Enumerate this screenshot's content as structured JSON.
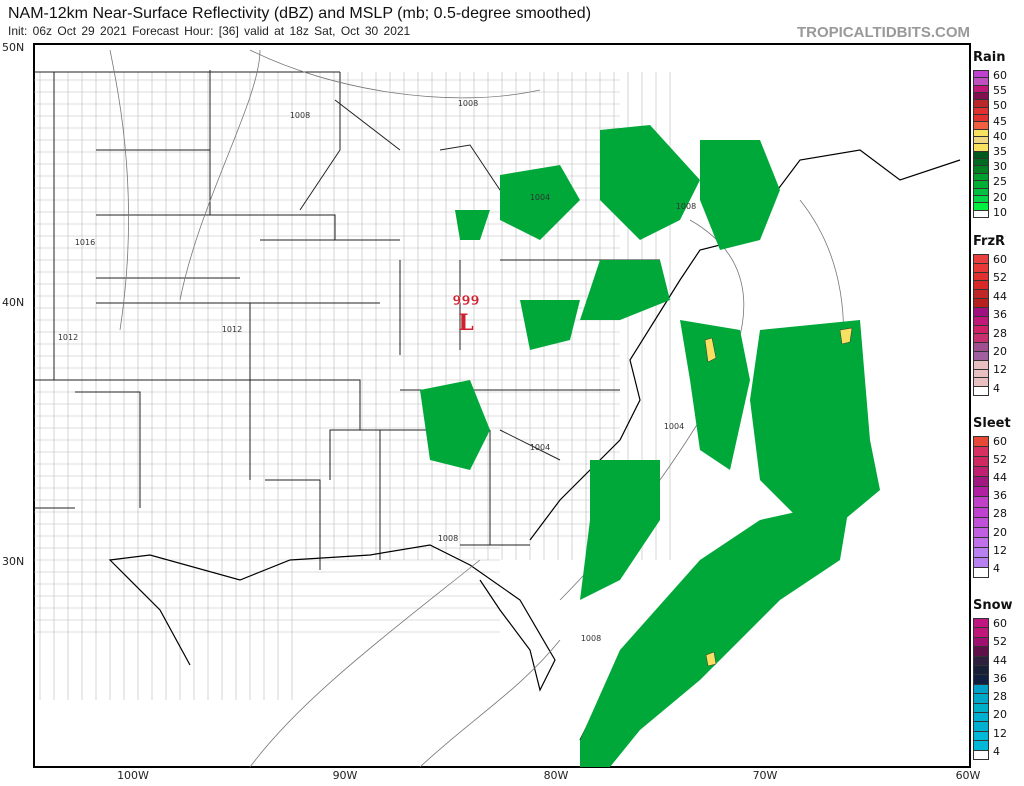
{
  "header": {
    "title": "NAM-12km Near-Surface Reflectivity (dBZ) and MSLP (mb; 0.5-degree smoothed)",
    "subtitle": "Init: 06z Oct 29 2021   Forecast Hour: [36]   valid at 18z Sat, Oct 30 2021",
    "brand": "TROPICALTIDBITS.COM"
  },
  "map": {
    "lat_labels": [
      "50N",
      "40N",
      "30N"
    ],
    "lon_labels": [
      "100W",
      "90W",
      "80W",
      "70W",
      "60W"
    ],
    "low_center": {
      "pressure": "999",
      "symbol": "L",
      "color": "#d02030"
    },
    "isobar_labels": [
      "1008",
      "1008",
      "1004",
      "1008",
      "1016",
      "1012",
      "1012",
      "1004",
      "1004",
      "1008",
      "1008"
    ],
    "precip_color": "#00a83a"
  },
  "legends": [
    {
      "title": "Rain",
      "labels": [
        "60",
        "55",
        "50",
        "45",
        "40",
        "35",
        "30",
        "25",
        "20",
        "10"
      ],
      "colors": [
        "#c040d0",
        "#c050c0",
        "#c01878",
        "#801050",
        "#b82828",
        "#e03030",
        "#e03030",
        "#f06040",
        "#f8e060",
        "#f0d880",
        "#f8e060",
        "#005a1e",
        "#006a20",
        "#008020",
        "#00a030",
        "#00b034",
        "#00c040",
        "#00d848",
        "#00f040",
        "#ffffff"
      ]
    },
    {
      "title": "FrzR",
      "labels": [
        "60",
        "52",
        "44",
        "36",
        "28",
        "20",
        "12",
        "4"
      ],
      "colors": [
        "#e84040",
        "#e83838",
        "#e03030",
        "#d82828",
        "#c02828",
        "#b82020",
        "#a01080",
        "#c01878",
        "#d02068",
        "#c83070",
        "#a05090",
        "#a060a0",
        "#e8c0c0",
        "#e8c0c0",
        "#e8c0c0",
        "#ffffff"
      ]
    },
    {
      "title": "Sleet",
      "labels": [
        "60",
        "52",
        "44",
        "36",
        "28",
        "20",
        "12",
        "4"
      ],
      "colors": [
        "#e84838",
        "#d83060",
        "#d02860",
        "#c02070",
        "#a01880",
        "#b020a0",
        "#c040c8",
        "#c040d0",
        "#c050d8",
        "#c060e0",
        "#c070e8",
        "#b880f0",
        "#b880f0",
        "#ffffff"
      ]
    },
    {
      "title": "Snow",
      "labels": [
        "60",
        "52",
        "44",
        "36",
        "28",
        "20",
        "12",
        "4"
      ],
      "colors": [
        "#c01880",
        "#c01878",
        "#a01070",
        "#601048",
        "#302040",
        "#182038",
        "#102040",
        "#00a0c8",
        "#00a8c8",
        "#00b0c8",
        "#00b0d0",
        "#00b0d0",
        "#00b8d8",
        "#00b8d8",
        "#ffffff"
      ]
    }
  ]
}
